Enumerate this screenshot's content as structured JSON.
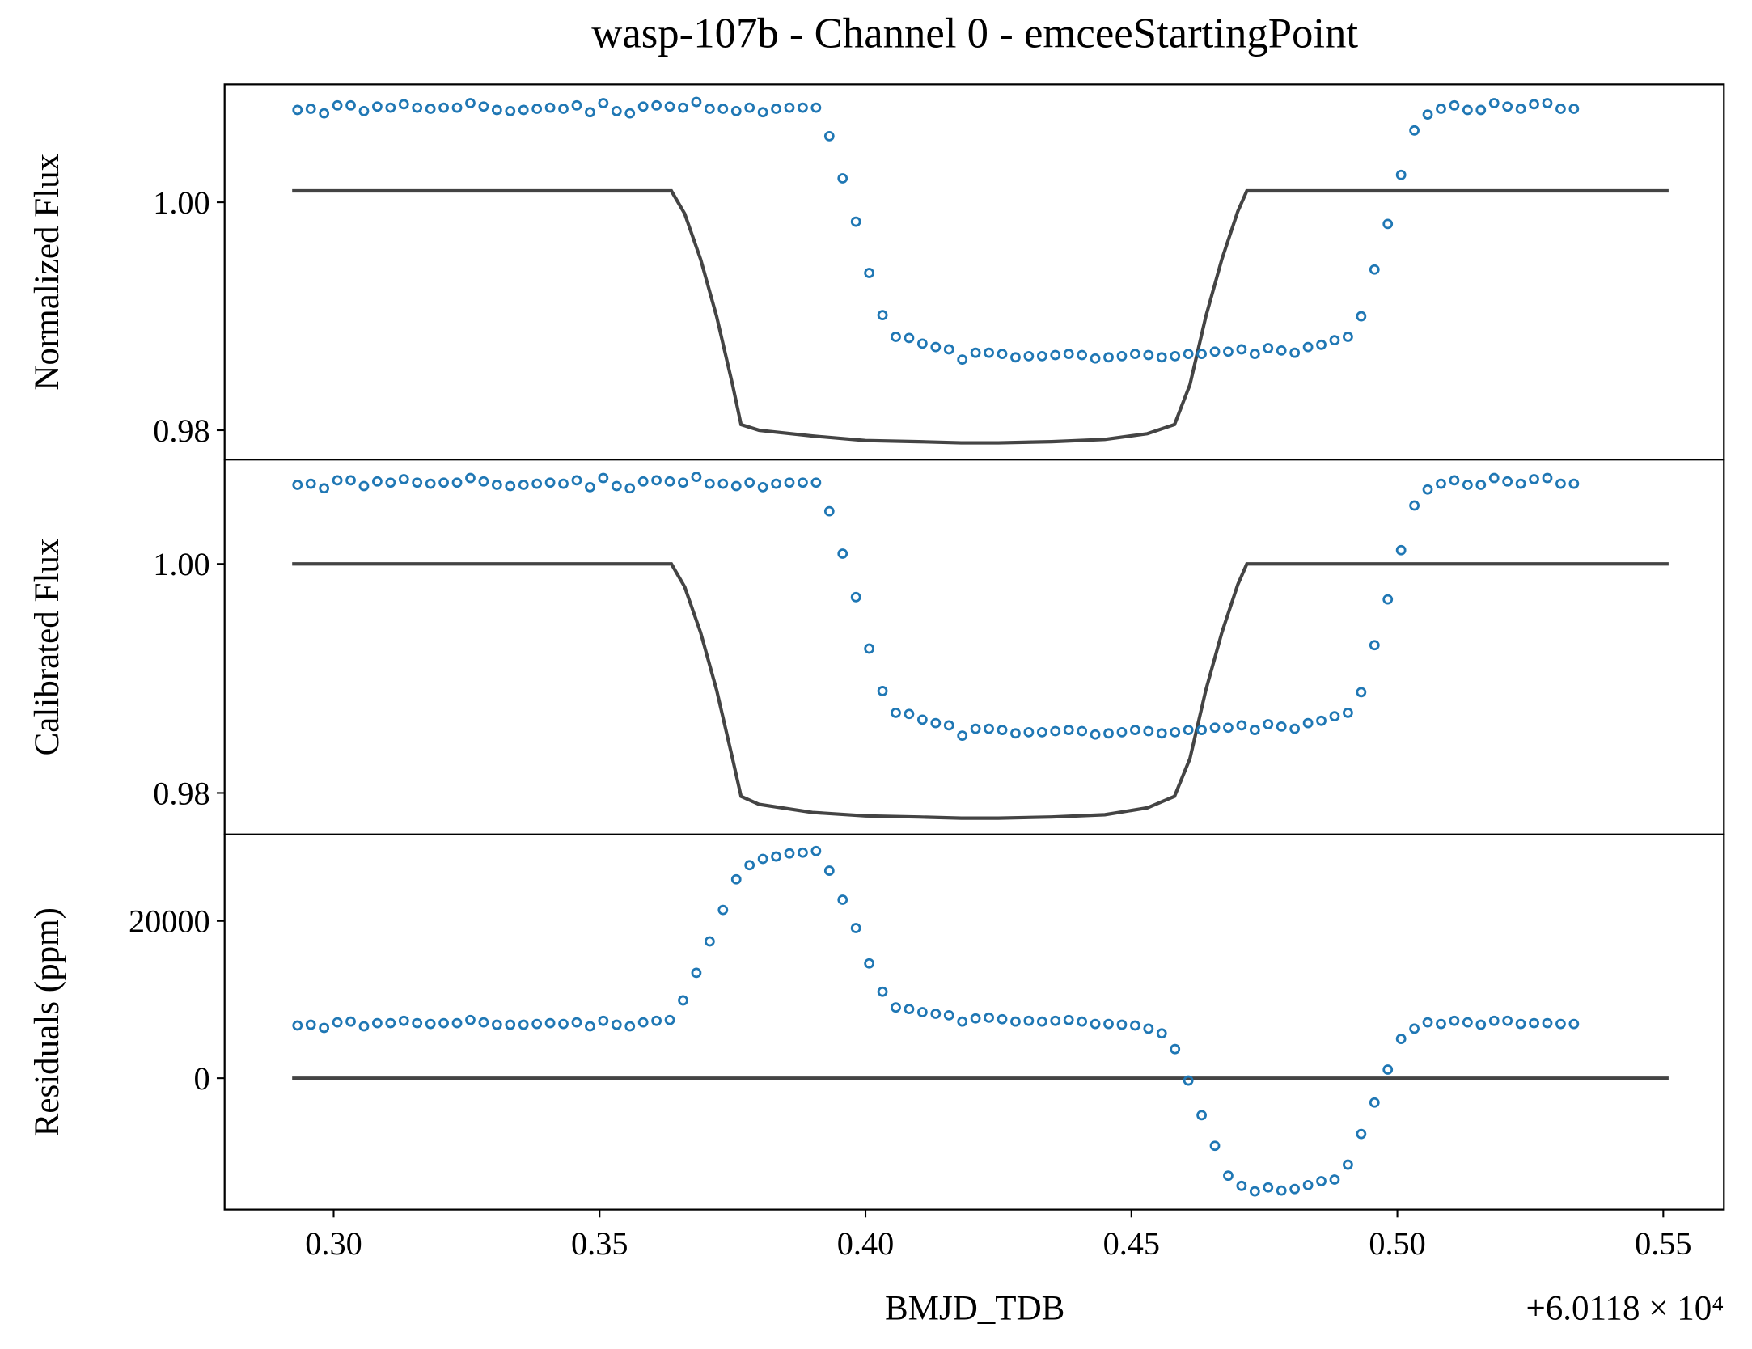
{
  "chart_data": {
    "type": "scatter",
    "title": "wasp-107b - Channel 0 - emceeStartingPoint",
    "xlabel": "BMJD_TDB",
    "x_offset_label": "+6.0118 × 10⁴",
    "xlim": [
      0.2795,
      0.5614
    ],
    "xticks": [
      {
        "value": 0.3,
        "label": "0.30"
      },
      0.35,
      {
        "value": 0.4,
        "label": "0.40"
      },
      0.45,
      {
        "value": 0.5,
        "label": "0.50"
      },
      0.55
    ],
    "x": [
      0.2932,
      0.2957,
      0.2982,
      0.3007,
      0.3032,
      0.3057,
      0.3082,
      0.3107,
      0.3132,
      0.3157,
      0.3182,
      0.3207,
      0.3232,
      0.3257,
      0.3282,
      0.3307,
      0.3332,
      0.3357,
      0.3382,
      0.3407,
      0.3432,
      0.3457,
      0.3482,
      0.3507,
      0.3532,
      0.3557,
      0.3582,
      0.3607,
      0.3632,
      0.3657,
      0.3682,
      0.3707,
      0.3732,
      0.3757,
      0.3782,
      0.3807,
      0.3832,
      0.3857,
      0.3882,
      0.3907,
      0.3932,
      0.3957,
      0.3982,
      0.4007,
      0.4032,
      0.4057,
      0.4082,
      0.4107,
      0.4132,
      0.4157,
      0.4182,
      0.4207,
      0.4232,
      0.4257,
      0.4282,
      0.4307,
      0.4332,
      0.4357,
      0.4382,
      0.4407,
      0.4432,
      0.4457,
      0.4482,
      0.4507,
      0.4532,
      0.4557,
      0.4582,
      0.4607,
      0.4632,
      0.4657,
      0.4682,
      0.4707,
      0.4732,
      0.4757,
      0.4782,
      0.4807,
      0.4832,
      0.4857,
      0.4882,
      0.4907,
      0.4932,
      0.4957,
      0.4982,
      0.5007,
      0.5032,
      0.5057,
      0.5082,
      0.5107,
      0.5132,
      0.5157,
      0.5182,
      0.5207,
      0.5232,
      0.5257,
      0.5282,
      0.5307,
      0.5332
    ],
    "panels": [
      {
        "ylabel": "Normalized Flux",
        "ylim": [
          0.97744,
          1.01034
        ],
        "yticks": [
          0.98,
          {
            "value": 1,
            "label": "1.00"
          }
        ],
        "series": [
          {
            "color": "#1f77b4",
            "values": [
              1.0081,
              1.0082,
              1.0078,
              1.0085,
              1.0085,
              1.008,
              1.0084,
              1.0083,
              1.0086,
              1.0083,
              1.0082,
              1.0083,
              1.0083,
              1.0087,
              1.0084,
              1.0081,
              1.008,
              1.0081,
              1.0082,
              1.0083,
              1.0082,
              1.0085,
              1.0079,
              1.0087,
              1.008,
              1.0078,
              1.0084,
              1.0085,
              1.0084,
              1.0083,
              1.0088,
              1.0082,
              1.0082,
              1.008,
              1.0083,
              1.0079,
              1.0082,
              1.0083,
              1.0083,
              1.0083,
              1.0058,
              1.0021,
              0.9983,
              0.9938,
              0.9901,
              0.9882,
              0.9881,
              0.9876,
              0.9873,
              0.9871,
              0.9862,
              0.9868,
              0.9868,
              0.9867,
              0.9864,
              0.9865,
              0.9865,
              0.9866,
              0.9867,
              0.9866,
              0.9863,
              0.9864,
              0.9865,
              0.9867,
              0.9866,
              0.9864,
              0.9865,
              0.9867,
              0.9867,
              0.9869,
              0.9869,
              0.9871,
              0.9867,
              0.9872,
              0.987,
              0.9868,
              0.9873,
              0.9875,
              0.9879,
              0.9882,
              0.99,
              0.9941,
              0.9981,
              1.0024,
              1.0063,
              1.0077,
              1.0082,
              1.0085,
              1.0081,
              1.0081,
              1.0087,
              1.0084,
              1.0082,
              1.0086,
              1.0087,
              1.0082,
              1.0082
            ]
          }
        ],
        "model": {
          "color": "#444444",
          "x": [
            0.2922,
            0.3635,
            0.366,
            0.369,
            0.372,
            0.375,
            0.3766,
            0.38,
            0.39,
            0.4,
            0.41,
            0.418,
            0.425,
            0.435,
            0.445,
            0.453,
            0.4581,
            0.461,
            0.464,
            0.467,
            0.47,
            0.4717,
            0.551
          ],
          "values": [
            1.001,
            1.001,
            0.999,
            0.995,
            0.99,
            0.984,
            0.9805,
            0.98,
            0.9795,
            0.9791,
            0.979,
            0.9789,
            0.9789,
            0.979,
            0.9792,
            0.9797,
            0.9805,
            0.984,
            0.99,
            0.995,
            0.9992,
            1.001,
            1.001
          ]
        }
      },
      {
        "ylabel": "Calibrated Flux",
        "ylim": [
          0.97637,
          1.00912
        ],
        "yticks": [
          0.98,
          {
            "value": 1,
            "label": "1.00"
          }
        ],
        "series": [
          {
            "color": "#1f77b4",
            "values": [
              1.0069,
              1.007,
              1.0066,
              1.0073,
              1.0073,
              1.0068,
              1.0072,
              1.0071,
              1.0074,
              1.0071,
              1.007,
              1.0071,
              1.0071,
              1.0075,
              1.0072,
              1.0069,
              1.0068,
              1.0069,
              1.007,
              1.0071,
              1.007,
              1.0073,
              1.0067,
              1.0075,
              1.0068,
              1.0066,
              1.0072,
              1.0073,
              1.0072,
              1.0071,
              1.0076,
              1.007,
              1.007,
              1.0068,
              1.0071,
              1.0067,
              1.007,
              1.0071,
              1.0071,
              1.0071,
              1.0046,
              1.0009,
              0.9971,
              0.9926,
              0.9889,
              0.987,
              0.9869,
              0.9864,
              0.9861,
              0.9859,
              0.985,
              0.9856,
              0.9856,
              0.9855,
              0.9852,
              0.9853,
              0.9853,
              0.9854,
              0.9855,
              0.9854,
              0.9851,
              0.9852,
              0.9853,
              0.9855,
              0.9854,
              0.9852,
              0.9853,
              0.9855,
              0.9855,
              0.9857,
              0.9857,
              0.9859,
              0.9855,
              0.986,
              0.9858,
              0.9856,
              0.9861,
              0.9863,
              0.9867,
              0.987,
              0.9888,
              0.9929,
              0.9969,
              1.0012,
              1.0051,
              1.0065,
              1.007,
              1.0073,
              1.0069,
              1.0069,
              1.0075,
              1.0072,
              1.007,
              1.0074,
              1.0075,
              1.007,
              1.007
            ]
          }
        ],
        "model": {
          "color": "#444444",
          "x": [
            0.2922,
            0.3635,
            0.366,
            0.369,
            0.372,
            0.375,
            0.3766,
            0.38,
            0.39,
            0.4,
            0.41,
            0.418,
            0.425,
            0.435,
            0.445,
            0.453,
            0.4581,
            0.461,
            0.464,
            0.467,
            0.47,
            0.4717,
            0.551
          ],
          "values": [
            1.0,
            1.0,
            0.998,
            0.994,
            0.989,
            0.983,
            0.9797,
            0.979,
            0.9783,
            0.978,
            0.9779,
            0.9778,
            0.9778,
            0.9779,
            0.9781,
            0.9787,
            0.9797,
            0.983,
            0.989,
            0.994,
            0.9982,
            1.0,
            1.0
          ]
        }
      },
      {
        "ylabel": "Residuals (ppm)",
        "ylim": [
          -16714,
          31000
        ],
        "yticks": [
          0,
          20000
        ],
        "series": [
          {
            "color": "#1f77b4",
            "values": [
              6700,
              6800,
              6400,
              7100,
              7200,
              6600,
              7000,
              7000,
              7300,
              7000,
              6900,
              7000,
              7000,
              7400,
              7100,
              6800,
              6800,
              6800,
              6900,
              7000,
              6900,
              7100,
              6600,
              7300,
              6800,
              6600,
              7100,
              7300,
              7400,
              9900,
              13400,
              17400,
              21400,
              25300,
              27100,
              27900,
              28200,
              28600,
              28700,
              28900,
              26400,
              22700,
              19100,
              14600,
              11000,
              9000,
              8800,
              8400,
              8200,
              8000,
              7200,
              7600,
              7700,
              7500,
              7200,
              7300,
              7200,
              7300,
              7400,
              7200,
              6900,
              6900,
              6800,
              6700,
              6300,
              5700,
              3700,
              -300,
              -4700,
              -8600,
              -12400,
              -13700,
              -14400,
              -13900,
              -14300,
              -14100,
              -13600,
              -13100,
              -12900,
              -11000,
              -7100,
              -3100,
              1100,
              5000,
              6300,
              7100,
              6900,
              7300,
              7100,
              6800,
              7300,
              7300,
              6900,
              7000,
              7000,
              6900,
              6900
            ]
          }
        ],
        "model": {
          "color": "#444444",
          "x": [
            0.2922,
            0.551
          ],
          "values": [
            0,
            0
          ]
        }
      }
    ]
  }
}
